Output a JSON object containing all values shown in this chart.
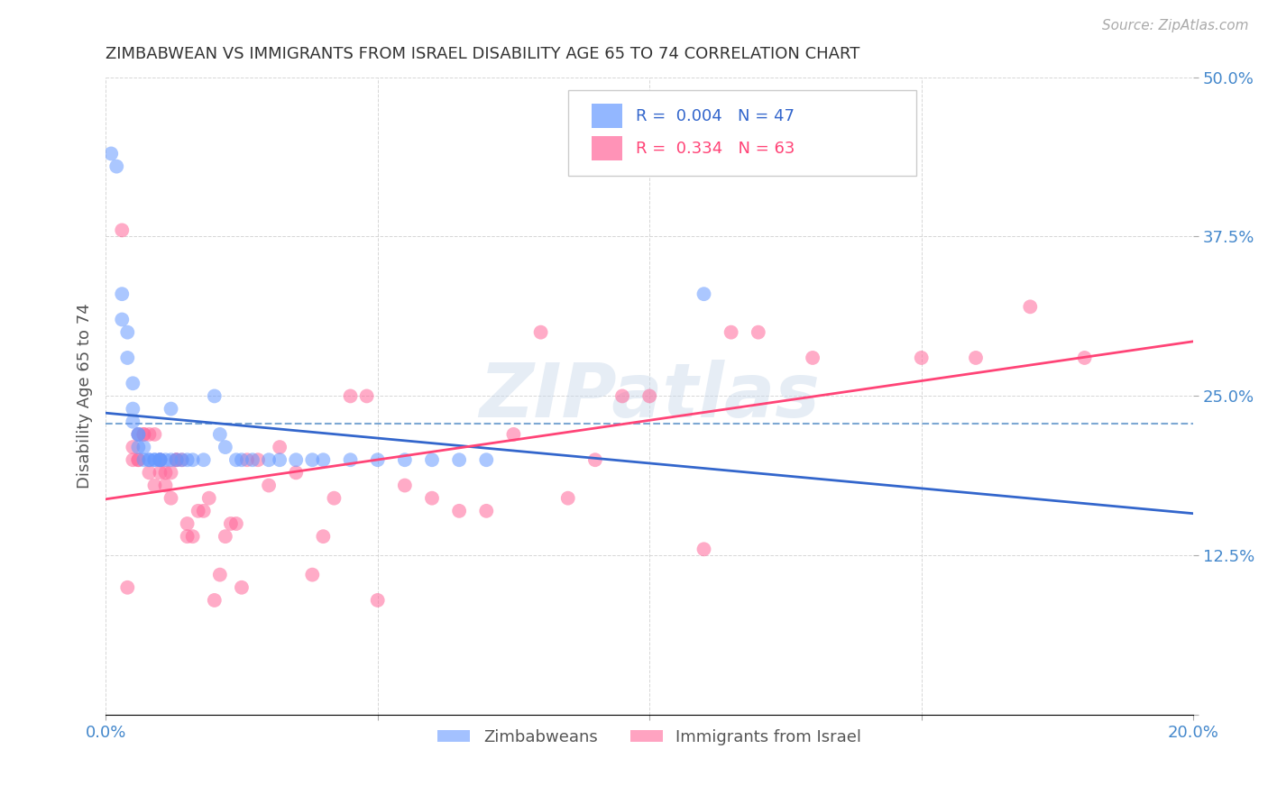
{
  "title": "ZIMBABWEAN VS IMMIGRANTS FROM ISRAEL DISABILITY AGE 65 TO 74 CORRELATION CHART",
  "source": "Source: ZipAtlas.com",
  "ylabel": "Disability Age 65 to 74",
  "xlim": [
    0.0,
    0.2
  ],
  "ylim": [
    0.0,
    0.5
  ],
  "xticks": [
    0.0,
    0.05,
    0.1,
    0.15,
    0.2
  ],
  "xtick_labels": [
    "0.0%",
    "",
    "",
    "",
    "20.0%"
  ],
  "ytick_labels": [
    "",
    "12.5%",
    "25.0%",
    "37.5%",
    "50.0%"
  ],
  "yticks": [
    0.0,
    0.125,
    0.25,
    0.375,
    0.5
  ],
  "blue_color": "#6699ff",
  "pink_color": "#ff6699",
  "blue_line_color": "#3366cc",
  "pink_line_color": "#ff4477",
  "blue_dashed_color": "#6699cc",
  "legend_R_blue": "0.004",
  "legend_N_blue": "47",
  "legend_R_pink": "0.334",
  "legend_N_pink": "63",
  "watermark": "ZIPatlas",
  "background_color": "#ffffff",
  "grid_color": "#cccccc",
  "axis_label_color": "#4488cc",
  "title_color": "#333333",
  "blue_scatter": {
    "x": [
      0.001,
      0.002,
      0.003,
      0.003,
      0.004,
      0.004,
      0.005,
      0.005,
      0.005,
      0.006,
      0.006,
      0.006,
      0.007,
      0.007,
      0.008,
      0.008,
      0.009,
      0.009,
      0.01,
      0.01,
      0.01,
      0.011,
      0.012,
      0.012,
      0.013,
      0.014,
      0.015,
      0.016,
      0.018,
      0.02,
      0.021,
      0.022,
      0.024,
      0.025,
      0.027,
      0.03,
      0.032,
      0.035,
      0.038,
      0.04,
      0.045,
      0.05,
      0.055,
      0.06,
      0.065,
      0.07,
      0.11
    ],
    "y": [
      0.44,
      0.43,
      0.33,
      0.31,
      0.3,
      0.28,
      0.26,
      0.24,
      0.23,
      0.22,
      0.22,
      0.21,
      0.21,
      0.2,
      0.2,
      0.2,
      0.2,
      0.2,
      0.2,
      0.2,
      0.2,
      0.2,
      0.2,
      0.24,
      0.2,
      0.2,
      0.2,
      0.2,
      0.2,
      0.25,
      0.22,
      0.21,
      0.2,
      0.2,
      0.2,
      0.2,
      0.2,
      0.2,
      0.2,
      0.2,
      0.2,
      0.2,
      0.2,
      0.2,
      0.2,
      0.2,
      0.33
    ]
  },
  "pink_scatter": {
    "x": [
      0.003,
      0.004,
      0.005,
      0.005,
      0.006,
      0.006,
      0.006,
      0.007,
      0.007,
      0.008,
      0.008,
      0.009,
      0.009,
      0.01,
      0.01,
      0.011,
      0.011,
      0.012,
      0.012,
      0.013,
      0.013,
      0.014,
      0.015,
      0.015,
      0.016,
      0.017,
      0.018,
      0.019,
      0.02,
      0.021,
      0.022,
      0.023,
      0.024,
      0.025,
      0.026,
      0.028,
      0.03,
      0.032,
      0.035,
      0.038,
      0.04,
      0.042,
      0.045,
      0.048,
      0.05,
      0.055,
      0.06,
      0.065,
      0.07,
      0.075,
      0.08,
      0.085,
      0.09,
      0.095,
      0.1,
      0.11,
      0.115,
      0.12,
      0.13,
      0.15,
      0.16,
      0.17,
      0.18
    ],
    "y": [
      0.38,
      0.1,
      0.2,
      0.21,
      0.22,
      0.2,
      0.2,
      0.22,
      0.22,
      0.19,
      0.22,
      0.22,
      0.18,
      0.19,
      0.2,
      0.18,
      0.19,
      0.17,
      0.19,
      0.2,
      0.2,
      0.2,
      0.14,
      0.15,
      0.14,
      0.16,
      0.16,
      0.17,
      0.09,
      0.11,
      0.14,
      0.15,
      0.15,
      0.1,
      0.2,
      0.2,
      0.18,
      0.21,
      0.19,
      0.11,
      0.14,
      0.17,
      0.25,
      0.25,
      0.09,
      0.18,
      0.17,
      0.16,
      0.16,
      0.22,
      0.3,
      0.17,
      0.2,
      0.25,
      0.25,
      0.13,
      0.3,
      0.3,
      0.28,
      0.28,
      0.28,
      0.32,
      0.28
    ]
  }
}
